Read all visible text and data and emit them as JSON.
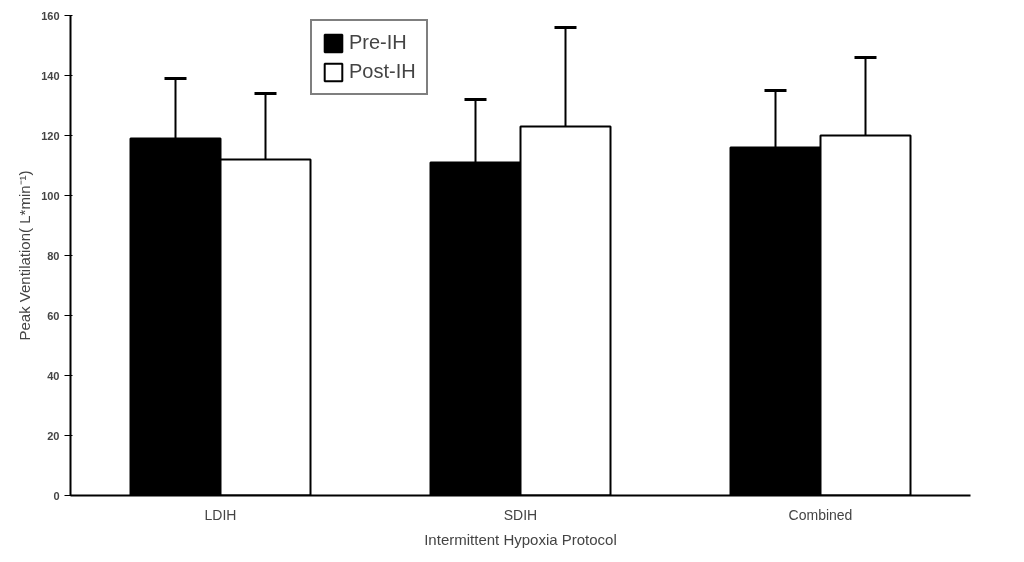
{
  "chart_data": {
    "type": "bar",
    "xlabel": "Intermittent Hypoxia Protocol",
    "ylabel": "Peak Ventilation( L*min⁻¹)",
    "categories": [
      "LDIH",
      "SDIH",
      "Combined"
    ],
    "series": [
      {
        "name": "Pre-IH",
        "color": "#000000",
        "values": [
          119,
          111,
          116
        ],
        "errors": [
          [
            119,
            139
          ],
          [
            111,
            132
          ],
          [
            116,
            135
          ]
        ]
      },
      {
        "name": "Post-IH",
        "color": "#ffffff",
        "values": [
          112,
          123,
          120
        ],
        "errors": [
          [
            112,
            134
          ],
          [
            123,
            156
          ],
          [
            120,
            146
          ]
        ]
      }
    ],
    "ylim": [
      0,
      160
    ],
    "yticks": [
      0,
      20,
      40,
      60,
      80,
      100,
      120,
      140,
      160
    ],
    "legend": "top",
    "grid": false
  }
}
